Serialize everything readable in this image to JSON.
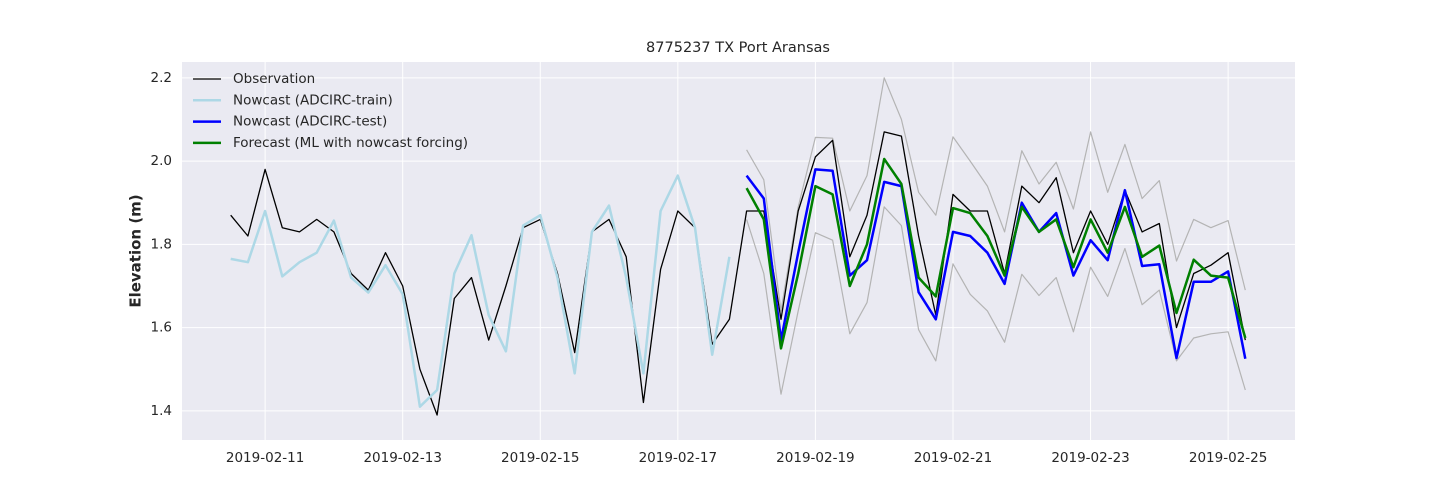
{
  "chart_data": {
    "type": "line",
    "title": "8775237 TX Port Aransas",
    "y_label": "Elevation (m)",
    "xlim": [
      "2019-02-09 19:00",
      "2019-02-25 23:20"
    ],
    "xticks": [
      "2019-02-11",
      "2019-02-13",
      "2019-02-15",
      "2019-02-17",
      "2019-02-19",
      "2019-02-21",
      "2019-02-23",
      "2019-02-25"
    ],
    "ylim": [
      1.33,
      2.238
    ],
    "yticks": [
      1.4,
      1.6,
      1.8,
      {
        "value": 2,
        "label": "2.0"
      },
      2.2
    ],
    "grid": true,
    "legend": "upper left",
    "series": [
      {
        "name": "Observation",
        "color": "#000000",
        "x": [
          "2019-02-10 12:00",
          "2019-02-10 18:00",
          "2019-02-11 00:00",
          "2019-02-11 06:00",
          "2019-02-11 12:00",
          "2019-02-11 18:00",
          "2019-02-12 00:00",
          "2019-02-12 06:00",
          "2019-02-12 12:00",
          "2019-02-12 18:00",
          "2019-02-13 00:00",
          "2019-02-13 06:00",
          "2019-02-13 12:00",
          "2019-02-13 18:00",
          "2019-02-14 00:00",
          "2019-02-14 06:00",
          "2019-02-14 12:00",
          "2019-02-14 18:00",
          "2019-02-15 00:00",
          "2019-02-15 06:00",
          "2019-02-15 12:00",
          "2019-02-15 18:00",
          "2019-02-16 00:00",
          "2019-02-16 06:00",
          "2019-02-16 12:00",
          "2019-02-16 18:00",
          "2019-02-17 00:00",
          "2019-02-17 06:00",
          "2019-02-17 12:00",
          "2019-02-17 18:00",
          "2019-02-18 00:00",
          "2019-02-18 06:00",
          "2019-02-18 12:00",
          "2019-02-18 18:00",
          "2019-02-19 00:00",
          "2019-02-19 06:00",
          "2019-02-19 12:00",
          "2019-02-19 18:00",
          "2019-02-20 00:00",
          "2019-02-20 06:00",
          "2019-02-20 12:00",
          "2019-02-20 18:00",
          "2019-02-21 00:00",
          "2019-02-21 06:00",
          "2019-02-21 12:00",
          "2019-02-21 18:00",
          "2019-02-22 00:00",
          "2019-02-22 06:00",
          "2019-02-22 12:00",
          "2019-02-22 18:00",
          "2019-02-23 00:00",
          "2019-02-23 06:00",
          "2019-02-23 12:00",
          "2019-02-23 18:00",
          "2019-02-24 00:00",
          "2019-02-24 06:00",
          "2019-02-24 12:00",
          "2019-02-24 18:00",
          "2019-02-25 00:00",
          "2019-02-25 06:00"
        ],
        "values": [
          1.87,
          1.82,
          1.98,
          1.84,
          1.83,
          1.86,
          1.83,
          1.73,
          1.69,
          1.78,
          1.7,
          1.5,
          1.39,
          1.67,
          1.72,
          1.57,
          1.7,
          1.84,
          1.86,
          1.73,
          1.54,
          1.83,
          1.86,
          1.77,
          1.42,
          1.74,
          1.88,
          1.84,
          1.56,
          1.62,
          1.88,
          1.88,
          1.62,
          1.88,
          2.01,
          2.05,
          1.77,
          1.87,
          2.07,
          2.06,
          1.82,
          1.63,
          1.92,
          1.88,
          1.88,
          1.73,
          1.94,
          1.9,
          1.96,
          1.78,
          1.88,
          1.8,
          1.93,
          1.83,
          1.85,
          1.6,
          1.73,
          1.75,
          1.78,
          1.57
        ]
      },
      {
        "name": "Nowcast (ADCIRC-train)",
        "color": "#add8e6",
        "x": [
          "2019-02-10 12:00",
          "2019-02-10 18:00",
          "2019-02-11 00:00",
          "2019-02-11 06:00",
          "2019-02-11 12:00",
          "2019-02-11 18:00",
          "2019-02-12 00:00",
          "2019-02-12 06:00",
          "2019-02-12 12:00",
          "2019-02-12 18:00",
          "2019-02-13 00:00",
          "2019-02-13 06:00",
          "2019-02-13 12:00",
          "2019-02-13 18:00",
          "2019-02-14 00:00",
          "2019-02-14 06:00",
          "2019-02-14 12:00",
          "2019-02-14 18:00",
          "2019-02-15 00:00",
          "2019-02-15 06:00",
          "2019-02-15 12:00",
          "2019-02-15 18:00",
          "2019-02-16 00:00",
          "2019-02-16 06:00",
          "2019-02-16 12:00",
          "2019-02-16 18:00",
          "2019-02-17 00:00",
          "2019-02-17 06:00",
          "2019-02-17 12:00",
          "2019-02-17 18:00"
        ],
        "values": [
          1.765,
          1.757,
          1.88,
          1.723,
          1.757,
          1.78,
          1.857,
          1.72,
          1.684,
          1.75,
          1.68,
          1.41,
          1.45,
          1.73,
          1.822,
          1.63,
          1.543,
          1.845,
          1.87,
          1.72,
          1.49,
          1.83,
          1.893,
          1.72,
          1.49,
          1.88,
          1.965,
          1.84,
          1.535,
          1.77
        ]
      },
      {
        "name": "Nowcast (ADCIRC-test)",
        "color": "#0000ff",
        "x": [
          "2019-02-18 00:00",
          "2019-02-18 06:00",
          "2019-02-18 12:00",
          "2019-02-18 18:00",
          "2019-02-19 00:00",
          "2019-02-19 06:00",
          "2019-02-19 12:00",
          "2019-02-19 18:00",
          "2019-02-20 00:00",
          "2019-02-20 06:00",
          "2019-02-20 12:00",
          "2019-02-20 18:00",
          "2019-02-21 00:00",
          "2019-02-21 06:00",
          "2019-02-21 12:00",
          "2019-02-21 18:00",
          "2019-02-22 00:00",
          "2019-02-22 06:00",
          "2019-02-22 12:00",
          "2019-02-22 18:00",
          "2019-02-23 00:00",
          "2019-02-23 06:00",
          "2019-02-23 12:00",
          "2019-02-23 18:00",
          "2019-02-24 00:00",
          "2019-02-24 06:00",
          "2019-02-24 12:00",
          "2019-02-24 18:00",
          "2019-02-25 00:00",
          "2019-02-25 06:00"
        ],
        "values": [
          1.965,
          1.91,
          1.57,
          1.78,
          1.98,
          1.977,
          1.725,
          1.762,
          1.95,
          1.94,
          1.685,
          1.62,
          1.83,
          1.82,
          1.78,
          1.705,
          1.9,
          1.83,
          1.875,
          1.725,
          1.81,
          1.762,
          1.93,
          1.748,
          1.752,
          1.527,
          1.71,
          1.71,
          1.735,
          1.525
        ]
      },
      {
        "name": "Forecast (ML with nowcast forcing)",
        "color": "#008000",
        "x": [
          "2019-02-18 00:00",
          "2019-02-18 06:00",
          "2019-02-18 12:00",
          "2019-02-18 18:00",
          "2019-02-19 00:00",
          "2019-02-19 06:00",
          "2019-02-19 12:00",
          "2019-02-19 18:00",
          "2019-02-20 00:00",
          "2019-02-20 06:00",
          "2019-02-20 12:00",
          "2019-02-20 18:00",
          "2019-02-21 00:00",
          "2019-02-21 06:00",
          "2019-02-21 12:00",
          "2019-02-21 18:00",
          "2019-02-22 00:00",
          "2019-02-22 06:00",
          "2019-02-22 12:00",
          "2019-02-22 18:00",
          "2019-02-23 00:00",
          "2019-02-23 06:00",
          "2019-02-23 12:00",
          "2019-02-23 18:00",
          "2019-02-24 00:00",
          "2019-02-24 06:00",
          "2019-02-24 12:00",
          "2019-02-24 18:00",
          "2019-02-25 00:00",
          "2019-02-25 06:00"
        ],
        "values": [
          1.935,
          1.86,
          1.55,
          1.73,
          1.94,
          1.92,
          1.7,
          1.8,
          2.005,
          1.945,
          1.72,
          1.675,
          1.887,
          1.875,
          1.82,
          1.725,
          1.89,
          1.83,
          1.86,
          1.745,
          1.86,
          1.78,
          1.89,
          1.77,
          1.797,
          1.635,
          1.763,
          1.725,
          1.72,
          1.575
        ]
      },
      {
        "color": "#b4b4b4",
        "x": [
          "2019-02-18 00:00",
          "2019-02-18 06:00",
          "2019-02-18 12:00",
          "2019-02-18 18:00",
          "2019-02-19 00:00",
          "2019-02-19 06:00",
          "2019-02-19 12:00",
          "2019-02-19 18:00",
          "2019-02-20 00:00",
          "2019-02-20 06:00",
          "2019-02-20 12:00",
          "2019-02-20 18:00",
          "2019-02-21 00:00",
          "2019-02-21 06:00",
          "2019-02-21 12:00",
          "2019-02-21 18:00",
          "2019-02-22 00:00",
          "2019-02-22 06:00",
          "2019-02-22 12:00",
          "2019-02-22 18:00",
          "2019-02-23 00:00",
          "2019-02-23 06:00",
          "2019-02-23 12:00",
          "2019-02-23 18:00",
          "2019-02-24 00:00",
          "2019-02-24 06:00",
          "2019-02-24 12:00",
          "2019-02-24 18:00",
          "2019-02-25 00:00",
          "2019-02-25 06:00"
        ],
        "values": [
          2.027,
          1.955,
          1.64,
          1.89,
          2.057,
          2.055,
          1.88,
          1.965,
          2.2,
          2.1,
          1.925,
          1.87,
          2.058,
          2.0,
          1.94,
          1.83,
          2.025,
          1.945,
          1.997,
          1.885,
          2.07,
          1.925,
          2.04,
          1.91,
          1.953,
          1.76,
          1.86,
          1.84,
          1.857,
          1.69
        ]
      },
      {
        "color": "#b4b4b4",
        "x": [
          "2019-02-18 00:00",
          "2019-02-18 06:00",
          "2019-02-18 12:00",
          "2019-02-18 18:00",
          "2019-02-19 00:00",
          "2019-02-19 06:00",
          "2019-02-19 12:00",
          "2019-02-19 18:00",
          "2019-02-20 00:00",
          "2019-02-20 06:00",
          "2019-02-20 12:00",
          "2019-02-20 18:00",
          "2019-02-21 00:00",
          "2019-02-21 06:00",
          "2019-02-21 12:00",
          "2019-02-21 18:00",
          "2019-02-22 00:00",
          "2019-02-22 06:00",
          "2019-02-22 12:00",
          "2019-02-22 18:00",
          "2019-02-23 00:00",
          "2019-02-23 06:00",
          "2019-02-23 12:00",
          "2019-02-23 18:00",
          "2019-02-24 00:00",
          "2019-02-24 06:00",
          "2019-02-24 12:00",
          "2019-02-24 18:00",
          "2019-02-25 00:00",
          "2019-02-25 06:00"
        ],
        "values": [
          1.86,
          1.73,
          1.44,
          1.64,
          1.828,
          1.81,
          1.585,
          1.66,
          1.89,
          1.845,
          1.595,
          1.52,
          1.753,
          1.68,
          1.64,
          1.565,
          1.728,
          1.677,
          1.72,
          1.59,
          1.745,
          1.675,
          1.79,
          1.655,
          1.69,
          1.52,
          1.575,
          1.585,
          1.59,
          1.45
        ]
      }
    ]
  }
}
